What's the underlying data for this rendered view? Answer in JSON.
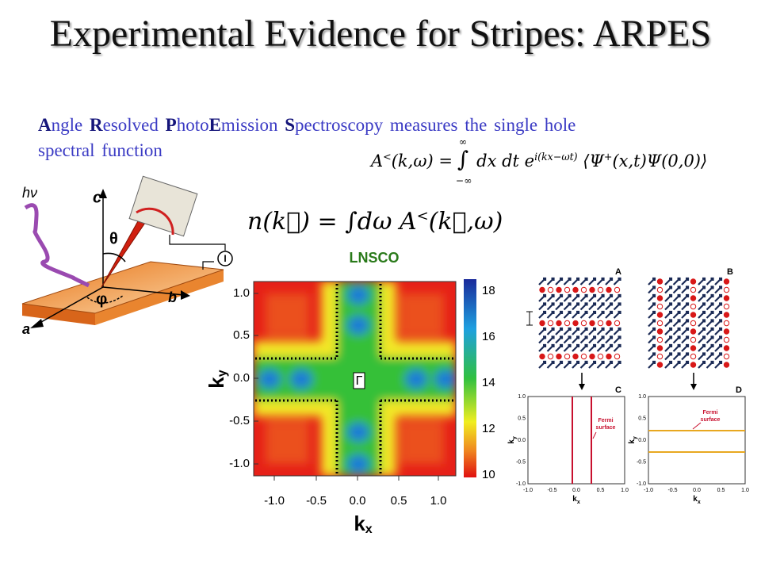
{
  "title": "Experimental Evidence for Stripes: ARPES",
  "intro": [
    "A",
    "ngle ",
    "R",
    "esolved ",
    "P",
    "hoto",
    "E",
    "mission ",
    "S",
    "pectroscopy measures the single hole spectral function"
  ],
  "formula_a": {
    "lhs": "A",
    "lhs_sup": "<",
    "lhs_args": "(k,ω) =",
    "int": "∫",
    "upper": "∞",
    "lower": "−∞",
    "body": "dx dt e",
    "exp": "i(kx−ωt)",
    "bra": "⟨Ψ",
    "bra_sup": "+",
    "rest": "(x,t)Ψ(0,0)⟩"
  },
  "formula_n": {
    "lhs": "n(k⃗) = ∫dω A",
    "sup": "<",
    "rest": "(k⃗,ω)"
  },
  "setup": {
    "photon": "hν",
    "c": "c",
    "theta": "θ",
    "phi": "φ",
    "b": "b",
    "a": "a",
    "current": "I"
  },
  "map": {
    "label": "LNSCO",
    "y_axis": "k",
    "y_sub": "y",
    "x_axis": "k",
    "x_sub": "x",
    "gamma": "Γ",
    "yticks": [
      "1.0",
      "0.5",
      "0.0",
      "-0.5",
      "-1.0"
    ],
    "xticks": [
      "-1.0",
      "-0.5",
      "0.0",
      "0.5",
      "1.0"
    ],
    "colorbar": [
      "18",
      "16",
      "14",
      "12",
      "10"
    ]
  },
  "stripes": {
    "panels": [
      "A",
      "B",
      "C",
      "D"
    ],
    "fermi": "Fermi",
    "surface": "surface",
    "y_axis": "k",
    "y_sub": "y",
    "x_axis": "k",
    "x_sub": "x",
    "yticks": [
      "1.0",
      "0.5",
      "0.0",
      "-0.5",
      "-1.0"
    ],
    "xticks": [
      "-1.0",
      "-0.5",
      "0.0",
      "0.5",
      "1.0"
    ]
  }
}
